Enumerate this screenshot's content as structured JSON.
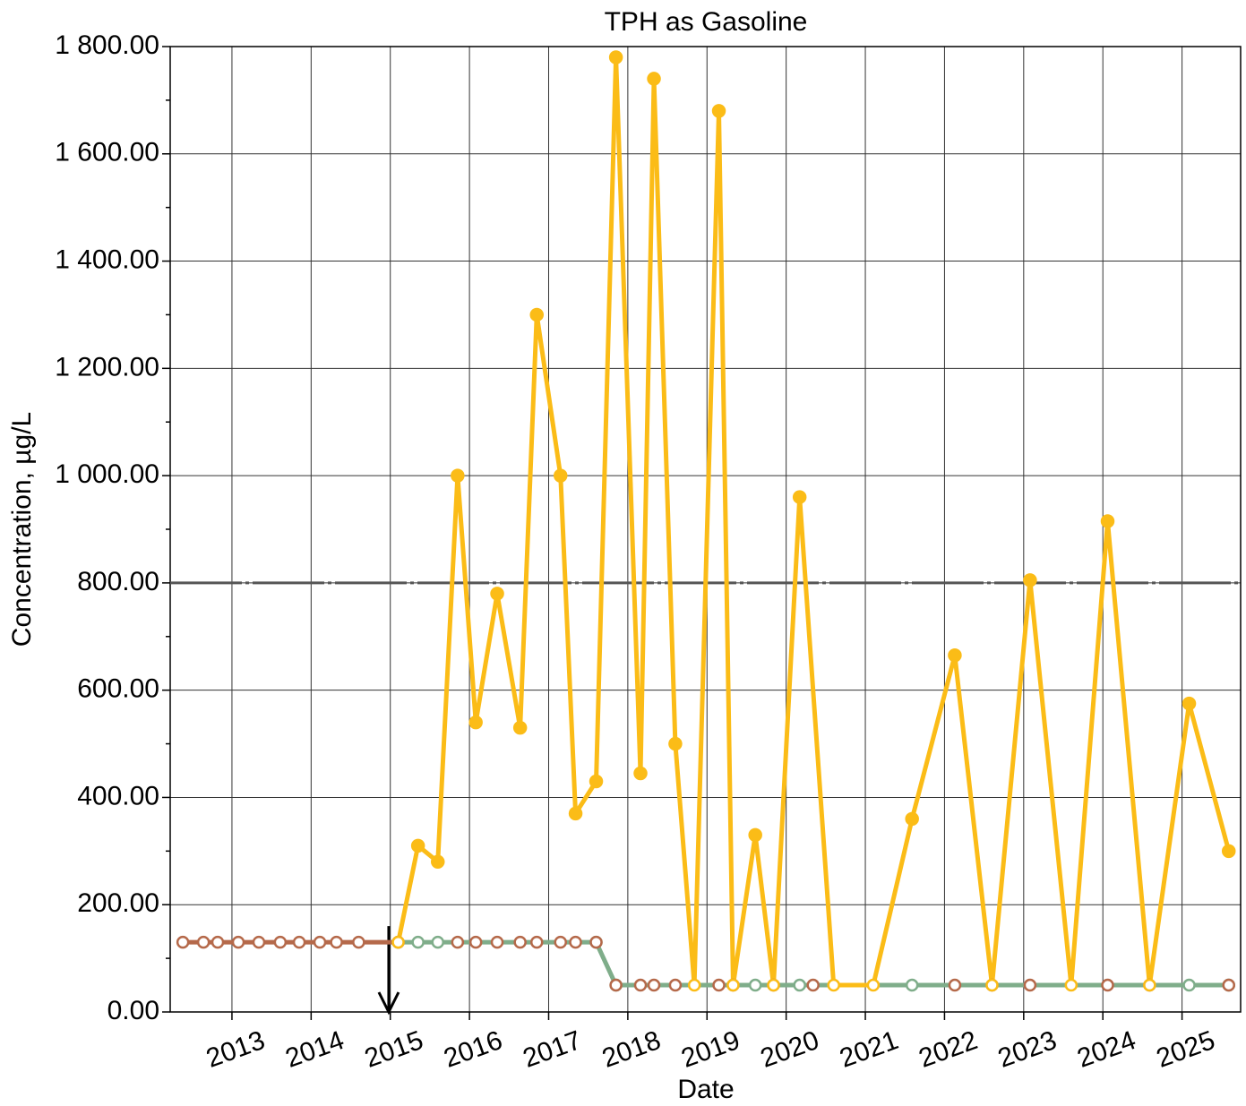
{
  "chart_data": {
    "type": "line",
    "title": "TPH as Gasoline",
    "xlabel": "Date",
    "ylabel": "Concentration, µg/L",
    "xlim": [
      2012.22,
      2025.74
    ],
    "xticks": [
      2013,
      2014,
      2015,
      2016,
      2017,
      2018,
      2019,
      2020,
      2021,
      2022,
      2023,
      2024,
      2025
    ],
    "ylim": [
      0,
      1800
    ],
    "yticks": [
      {
        "value": 0,
        "label": "0.00"
      },
      {
        "value": 200,
        "label": "200.00"
      },
      {
        "value": 400,
        "label": "400.00"
      },
      {
        "value": 600,
        "label": "600.00"
      },
      {
        "value": 800,
        "label": "800.00"
      },
      {
        "value": 1000,
        "label": "1 000.00"
      },
      {
        "value": 1200,
        "label": "1 200.00"
      },
      {
        "value": 1400,
        "label": "1 400.00"
      },
      {
        "value": 1600,
        "label": "1 600.00"
      },
      {
        "value": 1800,
        "label": "1 800.00"
      }
    ],
    "yminorticks": [
      100,
      300,
      500,
      700,
      900,
      1100,
      1300,
      1500,
      1700
    ],
    "grid": true,
    "hline": {
      "value": 800,
      "color": "#555555"
    },
    "arrow": {
      "x": 2014.98,
      "from": 160,
      "to": 0,
      "color": "#000000"
    },
    "series": [
      {
        "color": "#7fad8a",
        "line": true,
        "x": [
          2015.1,
          2015.35,
          2015.6,
          2017.6,
          2017.85,
          2019.61,
          2020.17,
          2021.59,
          2025.09,
          2025.59
        ],
        "values": [
          130,
          130,
          130,
          130,
          50,
          50,
          50,
          50,
          50,
          50
        ]
      },
      {
        "color": "#b5694a",
        "line": true,
        "x": [
          2012.38,
          2012.64,
          2012.82,
          2013.08,
          2013.34,
          2013.61,
          2013.85,
          2014.11,
          2014.32,
          2014.6,
          2015.1
        ],
        "values": [
          130,
          130,
          130,
          130,
          130,
          130,
          130,
          130,
          130,
          130,
          130
        ]
      },
      {
        "color": "#b5694a",
        "line": false,
        "x": [
          2015.85,
          2016.08,
          2016.35,
          2016.64,
          2016.85,
          2017.15,
          2017.34,
          2017.6,
          2017.85,
          2018.16,
          2018.33,
          2018.6,
          2019.15,
          2019.33,
          2019.84,
          2020.34,
          2022.13,
          2022.6,
          2023.08,
          2024.06,
          2024.59,
          2025.59
        ],
        "values": [
          130,
          130,
          130,
          130,
          130,
          130,
          130,
          130,
          50,
          50,
          50,
          50,
          50,
          50,
          50,
          50,
          50,
          50,
          50,
          50,
          50,
          50
        ]
      },
      {
        "color": "#fbbc17",
        "line": true,
        "x": [
          2015.1,
          2015.35,
          2015.6,
          2015.85,
          2016.08,
          2016.35,
          2016.64,
          2016.85,
          2017.15,
          2017.34,
          2017.6,
          2017.85,
          2018.16,
          2018.33,
          2018.6,
          2018.84,
          2019.15,
          2019.33,
          2019.61,
          2019.84,
          2020.17,
          2020.6,
          2021.1,
          2021.59,
          2022.13,
          2022.6,
          2023.08,
          2023.6,
          2024.06,
          2024.59,
          2025.09,
          2025.59
        ],
        "values": [
          130,
          310,
          280,
          1000,
          540,
          780,
          530,
          1300,
          1000,
          370,
          430,
          1780,
          445,
          1740,
          500,
          50,
          1680,
          50,
          330,
          50,
          960,
          50,
          50,
          360,
          665,
          50,
          805,
          50,
          915,
          50,
          575,
          300
        ],
        "filled": [
          false,
          true,
          true,
          true,
          true,
          true,
          true,
          true,
          true,
          true,
          true,
          true,
          true,
          true,
          true,
          false,
          true,
          false,
          true,
          false,
          true,
          false,
          false,
          true,
          true,
          false,
          true,
          false,
          true,
          false,
          true,
          true
        ]
      }
    ]
  }
}
